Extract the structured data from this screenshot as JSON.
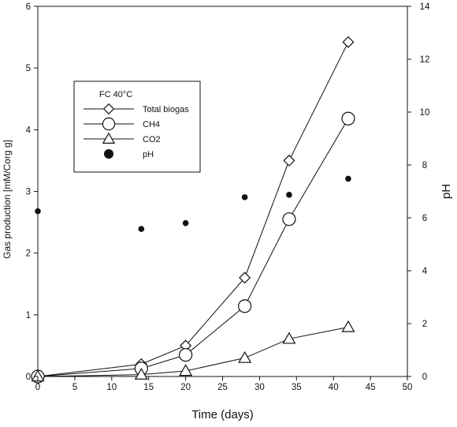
{
  "chart_data": {
    "type": "line",
    "x": [
      0,
      14,
      20,
      28,
      34,
      42
    ],
    "xlabel": "Time (days)",
    "ylabel": "Gas production [mM/Corg g]",
    "y2label": "pH",
    "xlim": [
      0,
      50
    ],
    "ylim": [
      0,
      6
    ],
    "y2lim": [
      0,
      14
    ],
    "x_ticks": [
      0,
      5,
      10,
      15,
      20,
      25,
      30,
      35,
      40,
      45,
      50
    ],
    "y_ticks": [
      0,
      1,
      2,
      3,
      4,
      5,
      6
    ],
    "y2_ticks": [
      0,
      2,
      4,
      6,
      8,
      10,
      12,
      14
    ],
    "grid": false,
    "legend": {
      "title": "FC 40°C",
      "placement": "upper-left"
    },
    "series": [
      {
        "name": "Total biogas",
        "marker": "diamond",
        "line": true,
        "axis": "left",
        "values": [
          0,
          0.2,
          0.5,
          1.6,
          3.5,
          5.42
        ]
      },
      {
        "name": "CH4",
        "marker": "circle",
        "line": true,
        "axis": "left",
        "values": [
          0,
          0.13,
          0.35,
          1.14,
          2.55,
          4.18
        ]
      },
      {
        "name": "CO2",
        "marker": "triangle",
        "line": true,
        "axis": "left",
        "values": [
          0,
          0.03,
          0.09,
          0.3,
          0.61,
          0.8
        ]
      },
      {
        "name": "pH",
        "marker": "dot",
        "line": false,
        "axis": "right",
        "values": [
          6.25,
          5.58,
          5.8,
          6.78,
          6.87,
          7.48
        ]
      }
    ]
  }
}
